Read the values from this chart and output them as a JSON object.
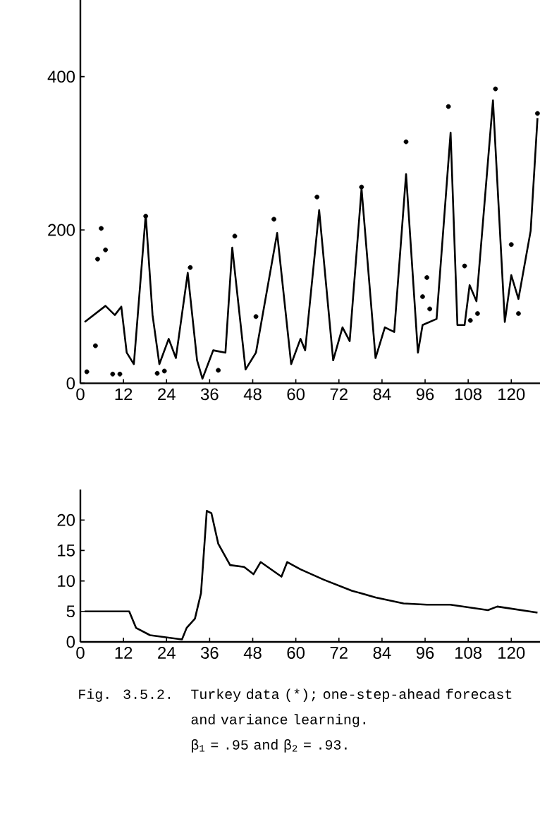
{
  "chart_data": [
    {
      "type": "line",
      "xlim": [
        0,
        128
      ],
      "ylim": [
        0,
        500
      ],
      "xticks": [
        0,
        12,
        24,
        36,
        48,
        60,
        72,
        84,
        96,
        108,
        120
      ],
      "yticks": [
        0,
        200,
        400
      ],
      "series": [
        {
          "color": "#000000",
          "line_style": "solid",
          "x": [
            1.2,
            7,
            9.6,
            11.4,
            12.9,
            14.9,
            18.2,
            20.1,
            22,
            24.6,
            26.6,
            29.9,
            32.5,
            34,
            37,
            40.4,
            42.3,
            46,
            48.9,
            54.8,
            58.7,
            61.3,
            62.6,
            66.5,
            70.4,
            73,
            75,
            78.3,
            82.2,
            84.8,
            87.4,
            90.7,
            94,
            95.3,
            99.2,
            103.1,
            105,
            107,
            108.4,
            110.3,
            114.9,
            118.2,
            120,
            122,
            125.4,
            127.3
          ],
          "values": [
            80,
            101,
            89,
            100,
            40,
            25,
            220,
            89,
            25,
            58,
            33,
            144,
            30,
            6,
            43,
            40,
            177,
            18,
            40,
            196,
            25,
            58,
            43,
            226,
            30,
            73,
            55,
            254,
            33,
            73,
            67,
            273,
            40,
            76,
            84,
            327,
            76,
            76,
            128,
            107,
            369,
            80,
            141,
            110,
            199,
            346
          ]
        },
        {
          "type": "scatter",
          "color": "#000000",
          "x": [
            1.8,
            4.2,
            4.8,
            5.8,
            7,
            9,
            11,
            18.2,
            21.4,
            23.4,
            30.6,
            38.4,
            43,
            48.9,
            53.9,
            65.9,
            78.3,
            90.7,
            95.3,
            96.5,
            97.3,
            102.5,
            107,
            108.6,
            110.6,
            115.6,
            120,
            122,
            127.3
          ],
          "values": [
            15,
            49,
            162,
            202,
            174,
            12,
            12,
            218,
            13,
            16,
            151,
            17,
            192,
            87,
            214,
            243,
            256,
            315,
            113,
            138,
            97,
            361,
            153,
            82,
            91,
            384,
            181,
            91,
            352
          ]
        }
      ]
    },
    {
      "type": "line",
      "xlim": [
        0,
        128
      ],
      "ylim": [
        0,
        25
      ],
      "xticks": [
        0,
        12,
        24,
        36,
        48,
        60,
        72,
        84,
        96,
        108,
        120
      ],
      "yticks": [
        0,
        5,
        10,
        15,
        20
      ],
      "series": [
        {
          "color": "#000000",
          "line_style": "solid",
          "x": [
            1.2,
            13.6,
            15.5,
            19.4,
            28.3,
            29.6,
            31.9,
            33.6,
            35.2,
            36.5,
            38.4,
            41.7,
            45.6,
            48.2,
            50.2,
            56,
            57.6,
            61.3,
            67.8,
            75.6,
            82.2,
            90,
            96.5,
            103,
            113.5,
            116.1,
            127.3
          ],
          "values": [
            5,
            5,
            2.3,
            1.1,
            0.4,
            2.3,
            3.8,
            8,
            21.5,
            21.1,
            16.1,
            12.6,
            12.3,
            11.1,
            13.1,
            10.7,
            13.1,
            11.9,
            10.2,
            8.4,
            7.3,
            6.3,
            6.1,
            6.1,
            5.2,
            5.8,
            4.8
          ]
        }
      ],
      "annotations": [
        "Fig. 3.5.2.",
        "Turkey data (*); one-step-ahead forecast and variance learning.",
        "β$_{1}$ = .95 and β$_{2}$ = .93."
      ]
    }
  ]
}
